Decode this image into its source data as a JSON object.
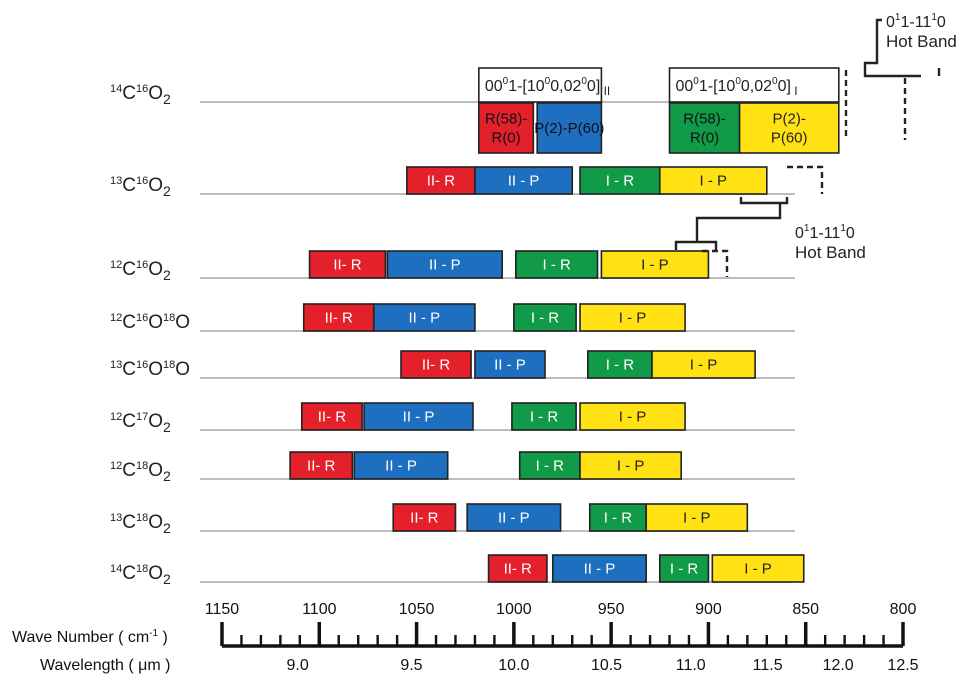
{
  "chart_data": {
    "type": "diagram",
    "colors": {
      "II-R": "#e4202a",
      "II-P": "#1f6fc0",
      "I-R": "#119a48",
      "I-P": "#ffe114",
      "outline": "#222222",
      "baseline": "#bdbdbd"
    },
    "isotopologues": [
      {
        "name": "14C16O2",
        "parts": [
          [
            "14",
            "C"
          ],
          [
            "16",
            "O"
          ],
          [
            "",
            "2"
          ]
        ],
        "bands": [
          {
            "type": "II-R",
            "label": "R(58)-\nR(0)",
            "start": 1018,
            "end": 990
          },
          {
            "type": "II-P",
            "label": "P(2)-P(60)",
            "start": 988,
            "end": 955
          },
          {
            "type": "I-R",
            "label": "R(58)-\nR(0)",
            "start": 920,
            "end": 884
          },
          {
            "type": "I-P",
            "label": "P(2)-\nP(60)",
            "start": 884,
            "end": 833
          }
        ]
      },
      {
        "name": "13C16O2",
        "parts": [
          [
            "13",
            "C"
          ],
          [
            "16",
            "O"
          ],
          [
            "",
            "2"
          ]
        ],
        "bands": [
          {
            "type": "II-R",
            "label": "II- R",
            "start": 1055,
            "end": 1020
          },
          {
            "type": "II-P",
            "label": "II - P",
            "start": 1020,
            "end": 970
          },
          {
            "type": "I-R",
            "label": "I - R",
            "start": 966,
            "end": 925
          },
          {
            "type": "I-P",
            "label": "I - P",
            "start": 925,
            "end": 870
          }
        ]
      },
      {
        "name": "12C16O2",
        "parts": [
          [
            "12",
            "C"
          ],
          [
            "16",
            "O"
          ],
          [
            "",
            "2"
          ]
        ],
        "bands": [
          {
            "type": "II-R",
            "label": "II- R",
            "start": 1105,
            "end": 1066
          },
          {
            "type": "II-P",
            "label": "II - P",
            "start": 1065,
            "end": 1006
          },
          {
            "type": "I-R",
            "label": "I - R",
            "start": 999,
            "end": 957
          },
          {
            "type": "I-P",
            "label": "I - P",
            "start": 955,
            "end": 900
          }
        ]
      },
      {
        "name": "12C16O18O",
        "parts": [
          [
            "12",
            "C"
          ],
          [
            "16",
            "O"
          ],
          [
            "18",
            "O"
          ]
        ],
        "bands": [
          {
            "type": "II-R",
            "label": "II- R",
            "start": 1108,
            "end": 1072
          },
          {
            "type": "II-P",
            "label": "II - P",
            "start": 1072,
            "end": 1020
          },
          {
            "type": "I-R",
            "label": "I - R",
            "start": 1000,
            "end": 968
          },
          {
            "type": "I-P",
            "label": "I - P",
            "start": 966,
            "end": 912
          }
        ]
      },
      {
        "name": "13C16O18O",
        "parts": [
          [
            "13",
            "C"
          ],
          [
            "16",
            "O"
          ],
          [
            "18",
            "O"
          ]
        ],
        "bands": [
          {
            "type": "II-R",
            "label": "II- R",
            "start": 1058,
            "end": 1022
          },
          {
            "type": "II-P",
            "label": "II - P",
            "start": 1020,
            "end": 984
          },
          {
            "type": "I-R",
            "label": "I - R",
            "start": 962,
            "end": 929
          },
          {
            "type": "I-P",
            "label": "I - P",
            "start": 929,
            "end": 876
          }
        ]
      },
      {
        "name": "12C17O2",
        "parts": [
          [
            "12",
            "C"
          ],
          [
            "17",
            "O"
          ],
          [
            "",
            "2"
          ]
        ],
        "bands": [
          {
            "type": "II-R",
            "label": "II- R",
            "start": 1109,
            "end": 1078
          },
          {
            "type": "II-P",
            "label": "II - P",
            "start": 1077,
            "end": 1021
          },
          {
            "type": "I-R",
            "label": "I - R",
            "start": 1001,
            "end": 968
          },
          {
            "type": "I-P",
            "label": "I - P",
            "start": 966,
            "end": 912
          }
        ]
      },
      {
        "name": "12C18O2",
        "parts": [
          [
            "12",
            "C"
          ],
          [
            "18",
            "O"
          ],
          [
            "",
            "2"
          ]
        ],
        "bands": [
          {
            "type": "II-R",
            "label": "II- R",
            "start": 1115,
            "end": 1083
          },
          {
            "type": "II-P",
            "label": "II - P",
            "start": 1082,
            "end": 1034
          },
          {
            "type": "I-R",
            "label": "I - R",
            "start": 997,
            "end": 966
          },
          {
            "type": "I-P",
            "label": "I - P",
            "start": 966,
            "end": 914
          }
        ]
      },
      {
        "name": "13C18O2",
        "parts": [
          [
            "13",
            "C"
          ],
          [
            "18",
            "O"
          ],
          [
            "",
            "2"
          ]
        ],
        "bands": [
          {
            "type": "II-R",
            "label": "II- R",
            "start": 1062,
            "end": 1030
          },
          {
            "type": "II-P",
            "label": "II - P",
            "start": 1024,
            "end": 976
          },
          {
            "type": "I-R",
            "label": "I - R",
            "start": 961,
            "end": 932
          },
          {
            "type": "I-P",
            "label": "I - P",
            "start": 932,
            "end": 880
          }
        ]
      },
      {
        "name": "14C18O2",
        "parts": [
          [
            "14",
            "C"
          ],
          [
            "18",
            "O"
          ],
          [
            "",
            "2"
          ]
        ],
        "bands": [
          {
            "type": "II-R",
            "label": "II- R",
            "start": 1013,
            "end": 983
          },
          {
            "type": "II-P",
            "label": "II - P",
            "start": 980,
            "end": 932
          },
          {
            "type": "I-R",
            "label": "I - R",
            "start": 925,
            "end": 900
          },
          {
            "type": "I-P",
            "label": "I - P",
            "start": 898,
            "end": 851
          }
        ]
      }
    ],
    "annotations": {
      "transition_II": {
        "main": "00",
        "sup1": "0",
        "mid": "1-[10",
        "sup2": "0",
        "mid2": "0,02",
        "sup3": "0",
        "end": "0]",
        "sub": "II"
      },
      "transition_I": {
        "main": "00",
        "sup1": "0",
        "mid": "1-[10",
        "sup2": "0",
        "mid2": "0,02",
        "sup3": "0",
        "end": "0]",
        "sub": "I"
      },
      "hot_band_top": {
        "line1": [
          "0",
          "1",
          "1-11",
          "1",
          "0"
        ],
        "line2": "Hot Band"
      },
      "hot_band_mid": {
        "line1": [
          "0",
          "1",
          "1-11",
          "1",
          "0"
        ],
        "line2": "Hot Band"
      }
    },
    "axis": {
      "wavenumber_label": "Wave Number ( cm",
      "wavenumber_label_sup": "-1",
      "wavenumber_label_end": " )",
      "wavelength_label": "Wavelength ( μm )",
      "wavenumber_ticks": [
        1150,
        1100,
        1050,
        1000,
        950,
        900,
        850,
        800
      ],
      "wavenumber_range": [
        1150,
        800
      ],
      "wavelength_ticks": [
        "9.0",
        "9.5",
        "10.0",
        "10.5",
        "11.0",
        "11.5",
        "12.0",
        "12.5"
      ],
      "wavelength_values": [
        9.0,
        9.5,
        10.0,
        10.5,
        11.0,
        11.5,
        12.0,
        12.5
      ]
    }
  }
}
